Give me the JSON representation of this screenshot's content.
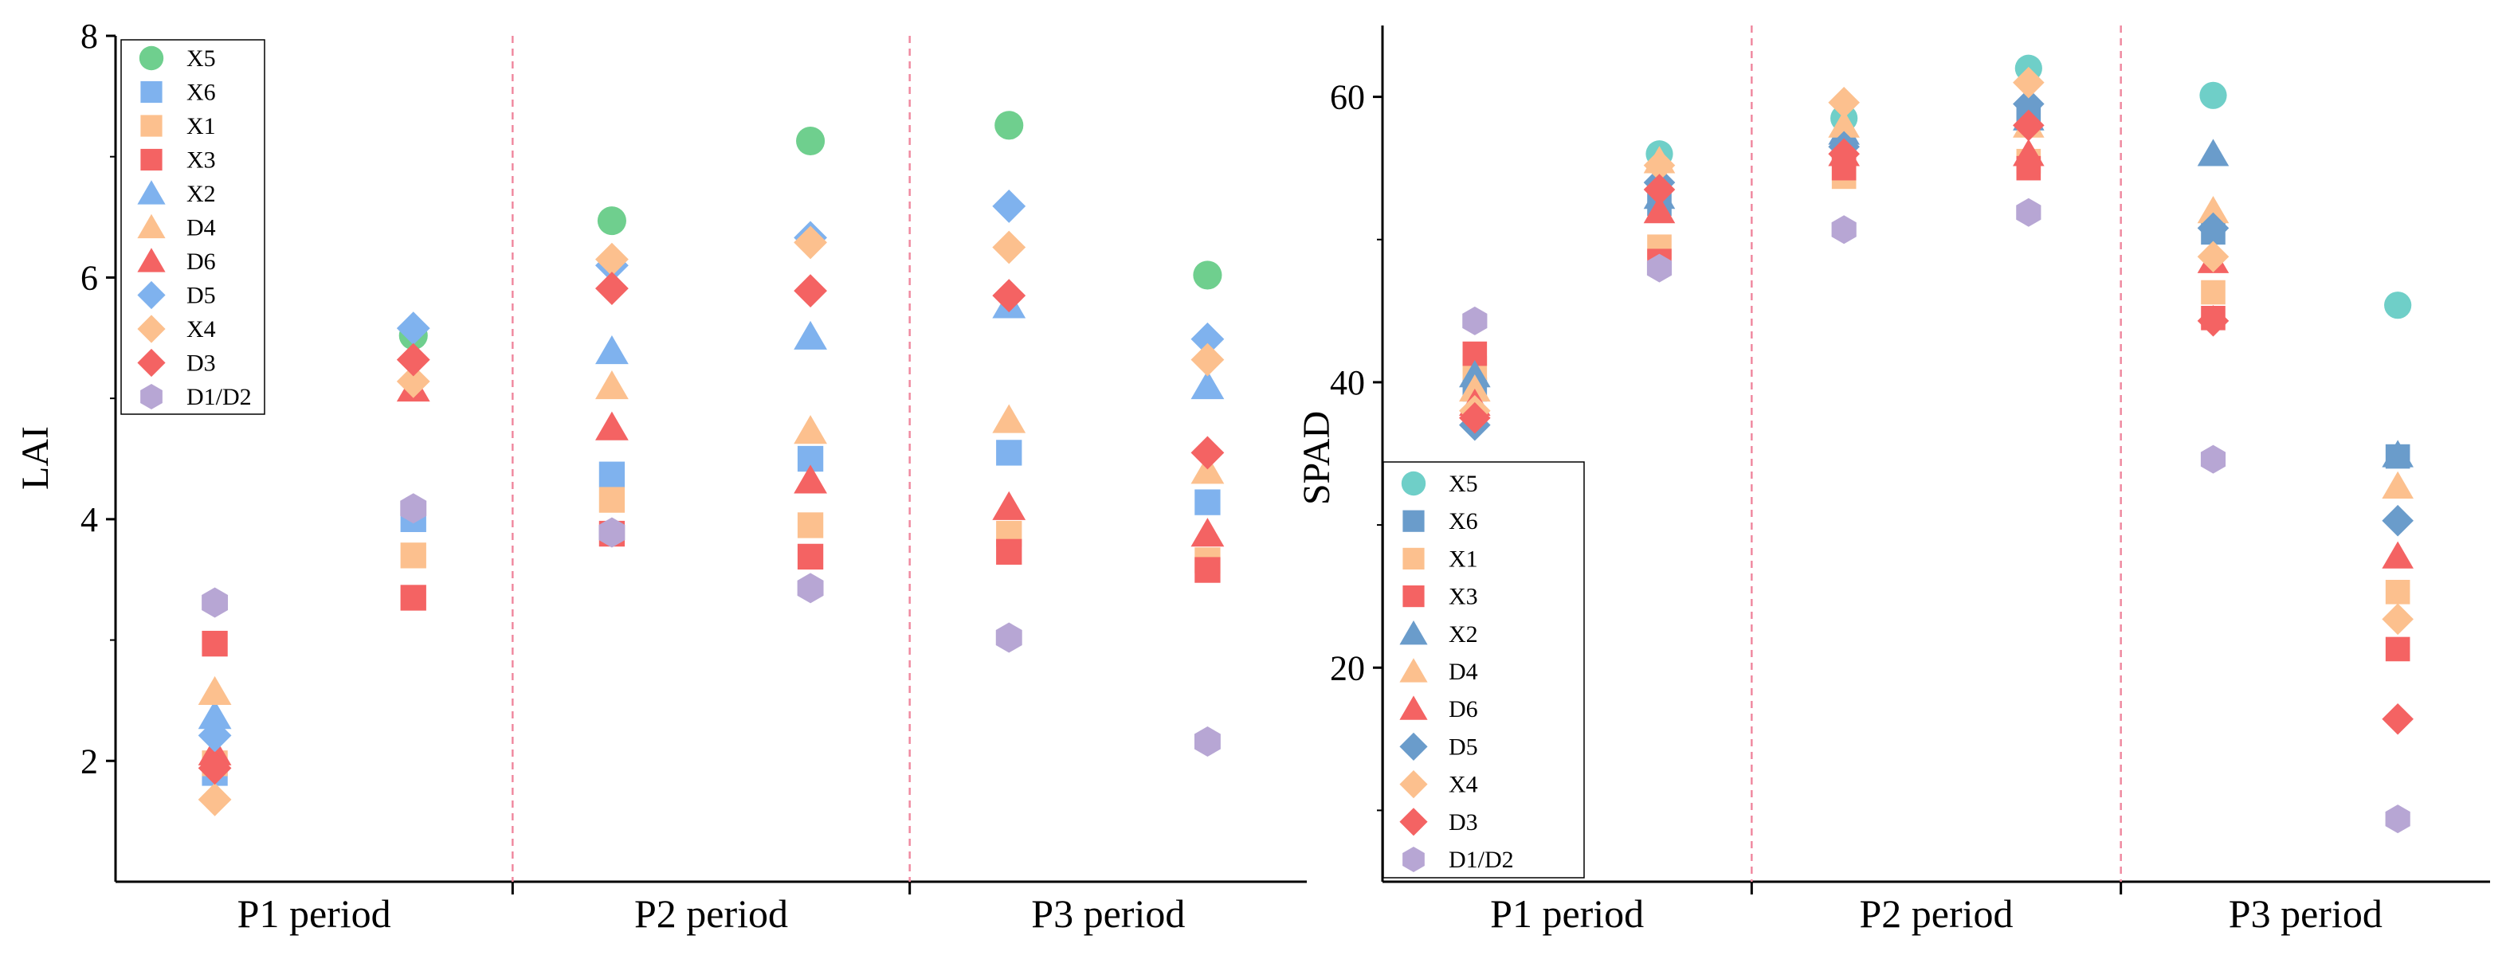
{
  "colors": {
    "X5": "#6fcf8e",
    "X6": "#7fb2ee",
    "X1": "#fcc08e",
    "X3": "#f46363",
    "X2": "#7fb2ee",
    "D4": "#fcc08e",
    "D6": "#f46363",
    "D5": "#7fb2ee",
    "X4": "#fcc08e",
    "D3": "#f46363",
    "D1/D2": "#b7a6d4",
    "X5_right": "#6fcfc8",
    "X6_right": "#6a9ccb",
    "X2_right": "#6a9ccb",
    "D5_right": "#6a9ccb",
    "divider": "#f08aa0"
  },
  "chart_data": [
    {
      "type": "scatter",
      "title": "",
      "xlabel": "",
      "ylabel": "LAI",
      "ylim": [
        1,
        8
      ],
      "yticks": [
        2,
        4,
        6,
        8
      ],
      "categories": [
        "P1 period",
        "P2 period",
        "P3 period"
      ],
      "x_positions": [
        0.75,
        1.25,
        1.75,
        2.25,
        2.75,
        3.25
      ],
      "legend_position": "top-left",
      "grid": false,
      "series": [
        {
          "name": "X5",
          "marker": "circle",
          "values": [
            null,
            5.52,
            6.47,
            7.13,
            7.26,
            6.02
          ]
        },
        {
          "name": "X6",
          "marker": "square",
          "values": [
            1.9,
            4.0,
            4.37,
            4.5,
            4.55,
            4.14
          ]
        },
        {
          "name": "X1",
          "marker": "square",
          "values": [
            1.98,
            3.7,
            4.16,
            3.95,
            3.88,
            3.66
          ]
        },
        {
          "name": "X3",
          "marker": "square",
          "values": [
            2.97,
            3.35,
            3.88,
            3.69,
            3.73,
            3.58
          ]
        },
        {
          "name": "X2",
          "marker": "triangle",
          "values": [
            2.37,
            null,
            5.39,
            5.51,
            5.77,
            5.1
          ]
        },
        {
          "name": "D4",
          "marker": "triangle",
          "values": [
            2.57,
            null,
            5.1,
            4.73,
            4.82,
            4.4
          ]
        },
        {
          "name": "D6",
          "marker": "triangle",
          "values": [
            2.07,
            5.08,
            4.76,
            4.32,
            4.1,
            3.88
          ]
        },
        {
          "name": "D5",
          "marker": "diamond",
          "values": [
            2.21,
            5.58,
            6.1,
            6.33,
            6.59,
            5.49
          ]
        },
        {
          "name": "X4",
          "marker": "diamond",
          "values": [
            1.68,
            5.14,
            6.15,
            6.29,
            6.25,
            5.32
          ]
        },
        {
          "name": "D3",
          "marker": "diamond",
          "values": [
            1.94,
            5.32,
            5.91,
            5.89,
            5.85,
            4.55
          ]
        },
        {
          "name": "D1/D2",
          "marker": "hexagon",
          "values": [
            3.31,
            4.09,
            3.89,
            3.43,
            3.02,
            2.16
          ]
        }
      ]
    },
    {
      "type": "scatter",
      "title": "",
      "xlabel": "",
      "ylabel": "SPAD",
      "ylim": [
        5,
        65
      ],
      "yticks": [
        20,
        40,
        60
      ],
      "categories": [
        "P1 period",
        "P2 period",
        "P3 period"
      ],
      "x_positions": [
        0.75,
        1.25,
        1.75,
        2.25,
        2.75,
        3.25
      ],
      "legend_position": "bottom-left",
      "grid": false,
      "series": [
        {
          "name": "X5",
          "marker": "circle",
          "values": [
            null,
            56.0,
            58.5,
            62.0,
            60.1,
            45.4
          ]
        },
        {
          "name": "X6",
          "marker": "square",
          "values": [
            39.5,
            52.5,
            56.0,
            58.5,
            50.5,
            34.8
          ]
        },
        {
          "name": "X1",
          "marker": "square",
          "values": [
            41.0,
            49.5,
            54.4,
            55.5,
            46.3,
            25.3
          ]
        },
        {
          "name": "X3",
          "marker": "square",
          "values": [
            42.0,
            48.5,
            55.0,
            55.0,
            44.5,
            21.3
          ]
        },
        {
          "name": "X2",
          "marker": "triangle",
          "values": [
            40.5,
            53.0,
            57.5,
            58.5,
            56.0,
            34.9
          ]
        },
        {
          "name": "D4",
          "marker": "triangle",
          "values": [
            39.5,
            55.5,
            58.0,
            58.0,
            52.0,
            32.7
          ]
        },
        {
          "name": "D6",
          "marker": "triangle",
          "values": [
            38.5,
            52.0,
            56.0,
            56.0,
            48.5,
            27.8
          ]
        },
        {
          "name": "D5",
          "marker": "diamond",
          "values": [
            37.0,
            54.0,
            56.5,
            59.5,
            50.8,
            30.3
          ]
        },
        {
          "name": "X4",
          "marker": "diamond",
          "values": [
            38.0,
            55.2,
            59.6,
            61.0,
            48.8,
            23.4
          ]
        },
        {
          "name": "D3",
          "marker": "diamond",
          "values": [
            37.5,
            53.5,
            56.0,
            58.0,
            44.3,
            16.4
          ]
        },
        {
          "name": "D1/D2",
          "marker": "hexagon",
          "values": [
            44.3,
            48.0,
            50.7,
            51.9,
            34.6,
            9.4
          ]
        }
      ]
    }
  ]
}
